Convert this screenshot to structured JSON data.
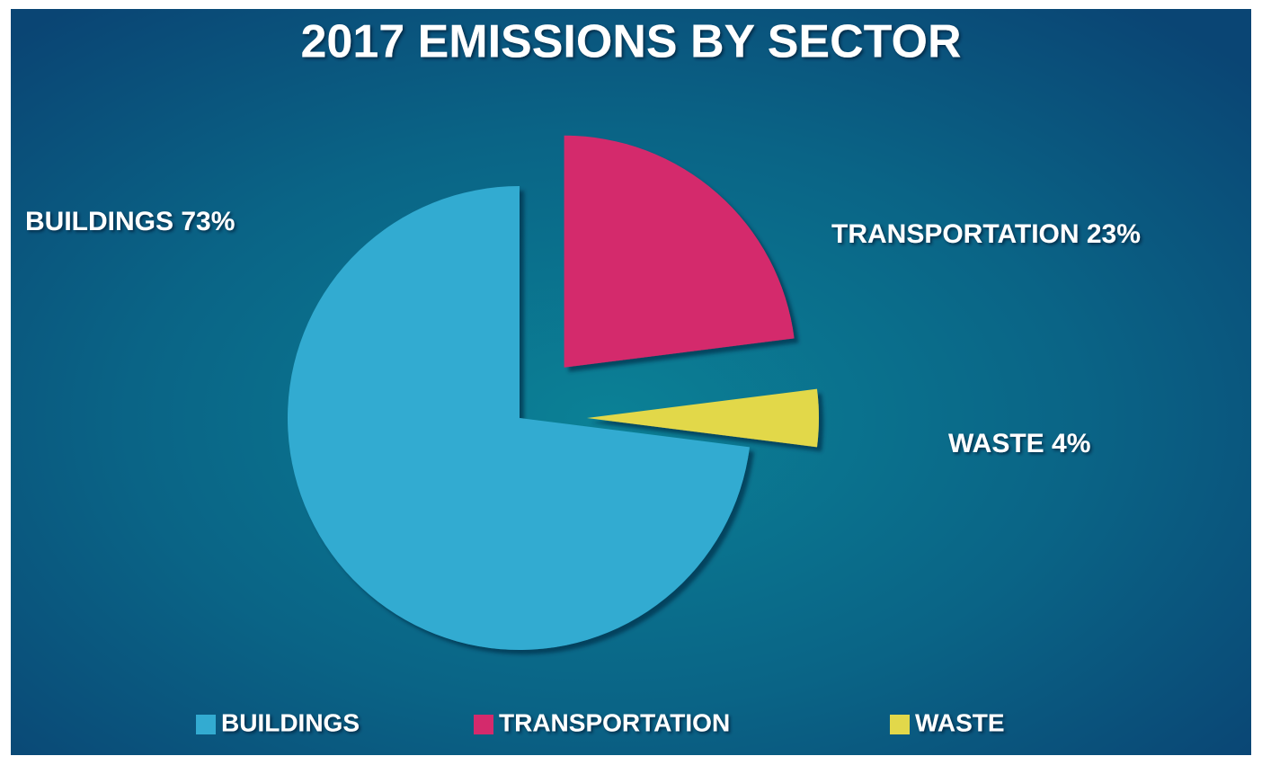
{
  "chart_data": {
    "type": "pie",
    "title": "2017 EMISSIONS BY SECTOR",
    "categories": [
      "BUILDINGS",
      "TRANSPORTATION",
      "WASTE"
    ],
    "values": [
      73,
      23,
      4
    ],
    "value_labels": [
      "BUILDINGS 73%",
      "TRANSPORTATION 23%",
      "WASTE 4%"
    ],
    "colors": [
      "#33abd1",
      "#d42a6c",
      "#e2d84a"
    ],
    "legend": "bottom"
  }
}
